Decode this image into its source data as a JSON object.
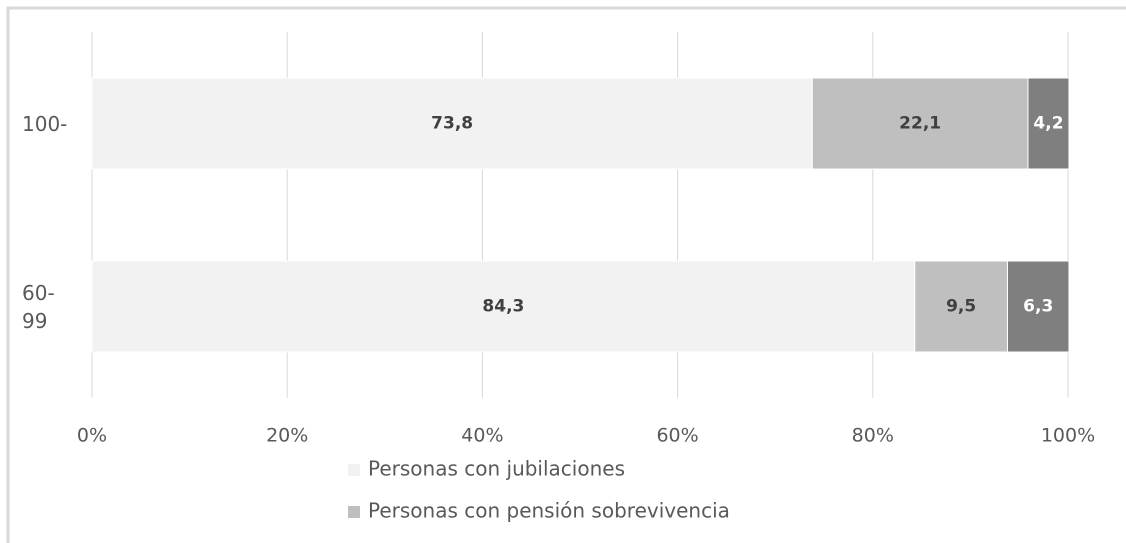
{
  "chart_data": {
    "type": "stacked-barh",
    "categories": [
      "100-",
      "60-99"
    ],
    "series": [
      {
        "name": "Personas con jubilaciones",
        "color": "#f2f2f2",
        "label_color": "#404040",
        "values": [
          73.8,
          84.3
        ],
        "value_labels": [
          "73,8",
          "84,3"
        ]
      },
      {
        "name": "Personas con pensión sobrevivencia",
        "color": "#bfbfbf",
        "label_color": "#404040",
        "values": [
          22.1,
          9.5
        ],
        "value_labels": [
          "22,1",
          "9,5"
        ]
      },
      {
        "color": "#7f7f7f",
        "label_color": "#ffffff",
        "values": [
          4.2,
          6.3
        ],
        "value_labels": [
          "4,2",
          "6,3"
        ]
      }
    ],
    "xlim": [
      0,
      100
    ],
    "xticks": [
      {
        "value": 0,
        "label": "0%"
      },
      {
        "value": 20,
        "label": "20%"
      },
      {
        "value": 40,
        "label": "40%"
      },
      {
        "value": 60,
        "label": "60%"
      },
      {
        "value": 80,
        "label": "80%"
      },
      {
        "value": 100,
        "label": "100%"
      }
    ],
    "grid": true,
    "legend": "bottom"
  }
}
